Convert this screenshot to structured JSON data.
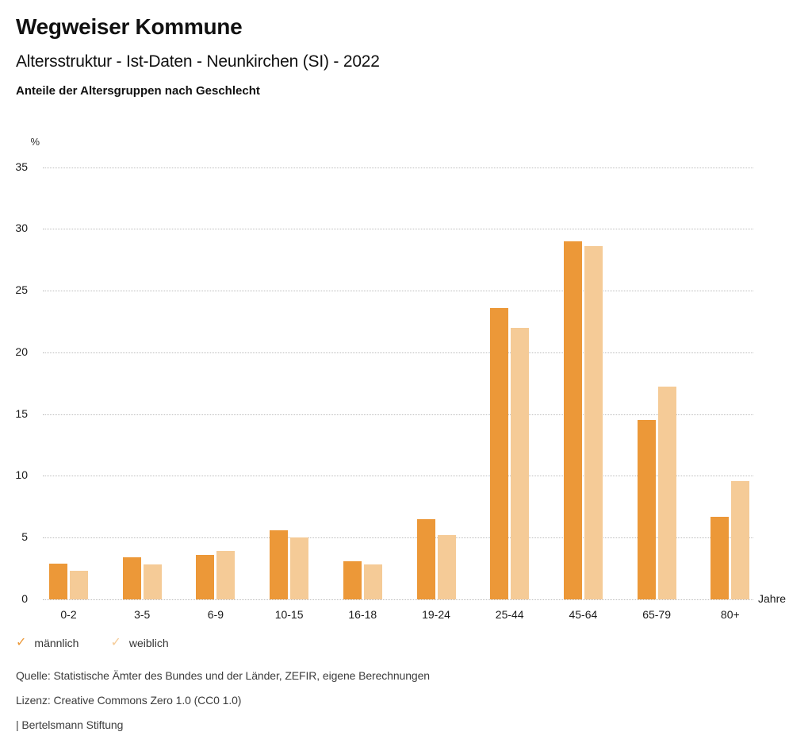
{
  "header": {
    "title": "Wegweiser Kommune",
    "subtitle": "Altersstruktur - Ist-Daten - Neunkirchen (SI) - 2022",
    "chart_heading": "Anteile der Altersgruppen nach Geschlecht"
  },
  "chart_data": {
    "type": "bar",
    "title": "Anteile der Altersgruppen nach Geschlecht",
    "categories": [
      "0-2",
      "3-5",
      "6-9",
      "10-15",
      "16-18",
      "19-24",
      "25-44",
      "45-64",
      "65-79",
      "80+"
    ],
    "series": [
      {
        "name": "männlich",
        "color": "#EC9838",
        "values": [
          2.9,
          3.4,
          3.6,
          5.6,
          3.1,
          6.5,
          23.6,
          29.0,
          14.5,
          6.7
        ]
      },
      {
        "name": "weiblich",
        "color": "#F5CB97",
        "values": [
          2.3,
          2.8,
          3.9,
          5.0,
          2.8,
          5.2,
          22.0,
          28.6,
          17.2,
          9.6
        ]
      }
    ],
    "ylabel": "%",
    "xlabel": "Jahre",
    "ylim": [
      0,
      35
    ],
    "ytick_step": 5,
    "grid": "horizontal-dotted",
    "legend_position": "bottom-left",
    "legend_marker": "check-icon"
  },
  "footer": {
    "source": "Quelle: Statistische Ämter des Bundes und der Länder, ZEFIR, eigene Berechnungen",
    "license": "Lizenz: Creative Commons Zero 1.0 (CC0 1.0)",
    "attribution": "| Bertelsmann Stiftung"
  }
}
